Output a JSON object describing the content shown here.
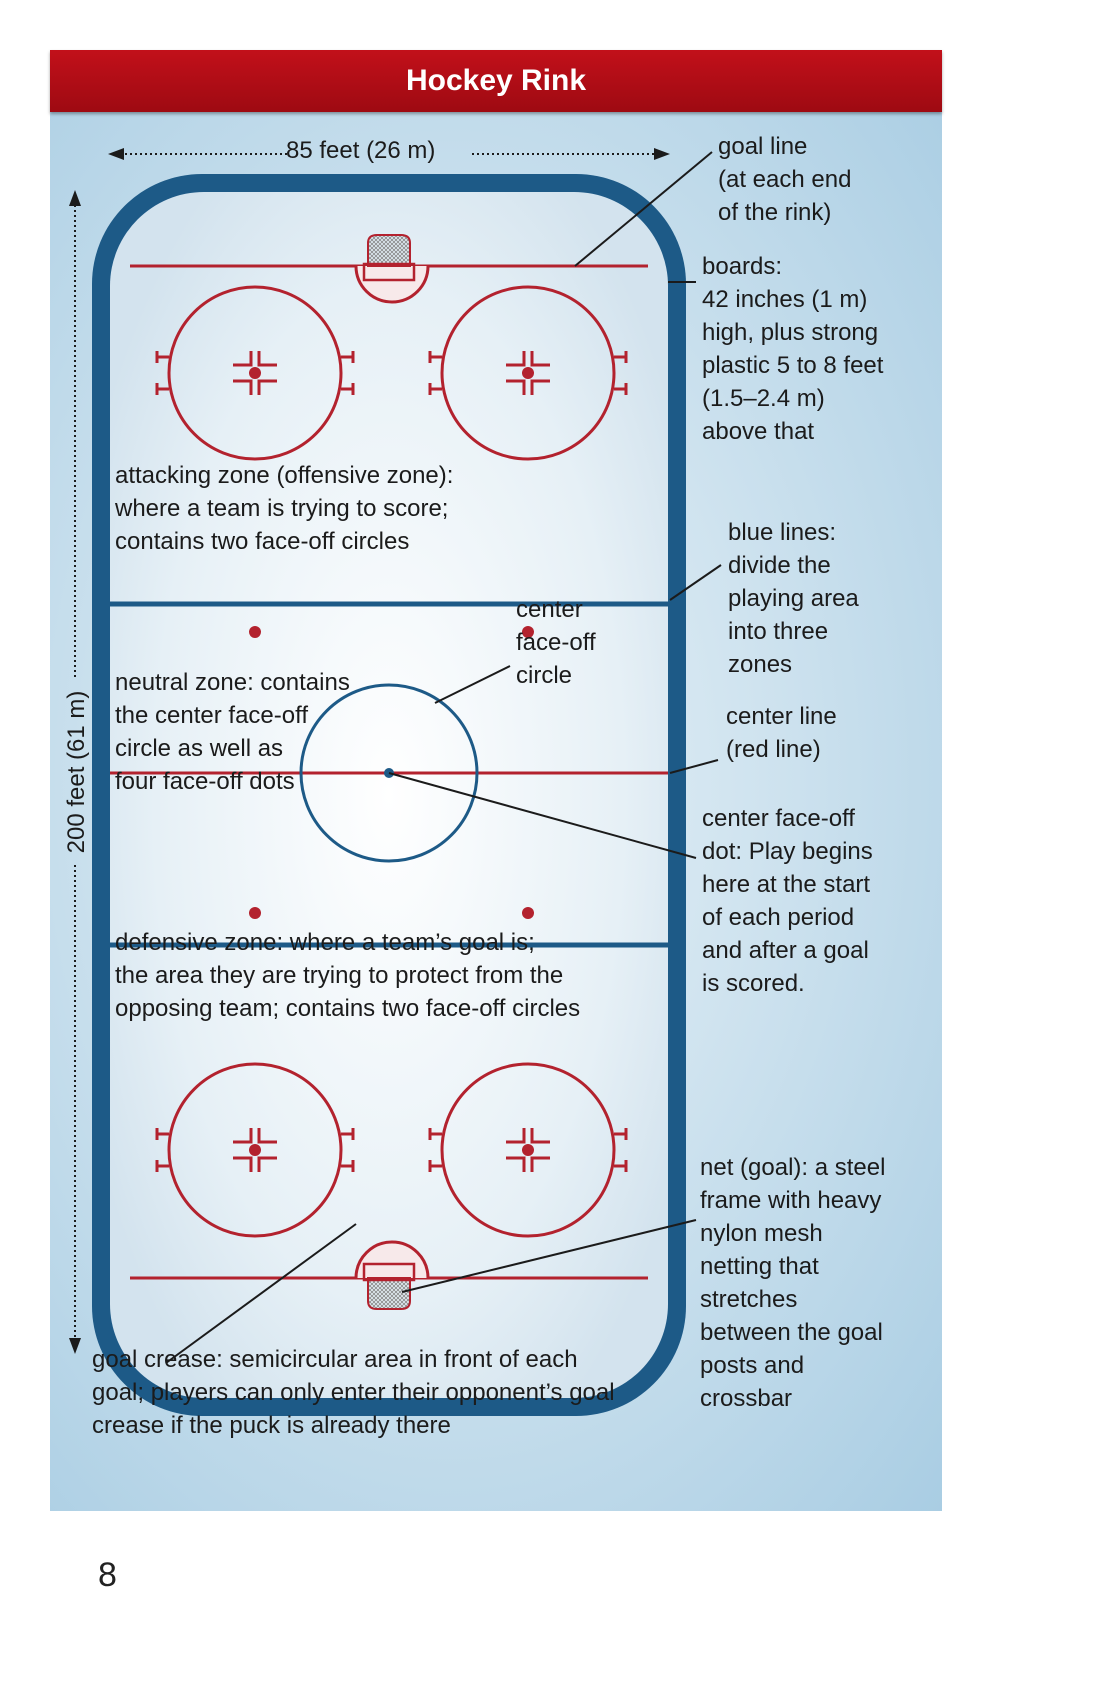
{
  "title": "Hockey Rink",
  "width_label": "85 feet (26 m)",
  "length_label": "200 feet (61 m)",
  "labels": {
    "goal_line": "goal line\n(at each end\nof the rink)",
    "boards": "boards:\n42 inches (1 m)\nhigh, plus strong\nplastic 5 to 8 feet\n(1.5–2.4 m)\nabove that",
    "attacking_zone": "attacking zone (offensive zone):\nwhere a team is trying to score;\ncontains two face-off circles",
    "blue_lines": "blue lines:\ndivide the\nplaying area\ninto three\nzones",
    "center_circle": "center\nface-off\ncircle",
    "neutral_zone": "neutral zone: contains\nthe center face-off\ncircle as well as\nfour face-off dots",
    "center_line": "center line\n(red line)",
    "center_dot": "center face-off\ndot: Play begins\nhere at the start\nof each period\nand after a goal\nis scored.",
    "defensive_zone": "defensive zone: where a team’s goal is;\nthe area they are trying to protect from the\nopposing team; contains two face-off circles",
    "net": "net (goal): a steel\nframe with heavy\nnylon mesh\nnetting that\nstretches\nbetween the goal\nposts and\ncrossbar",
    "goal_crease": "goal crease: semicircular area in front of each\ngoal; players can only enter their opponent’s goal\ncrease if the puck is already there"
  },
  "page_number": "8",
  "colors": {
    "title_bar": "#b10c14",
    "boards": "#1d5a87",
    "red_line": "#b3222e",
    "blue_line": "#1d5a87",
    "ice": "#eef5fa"
  }
}
